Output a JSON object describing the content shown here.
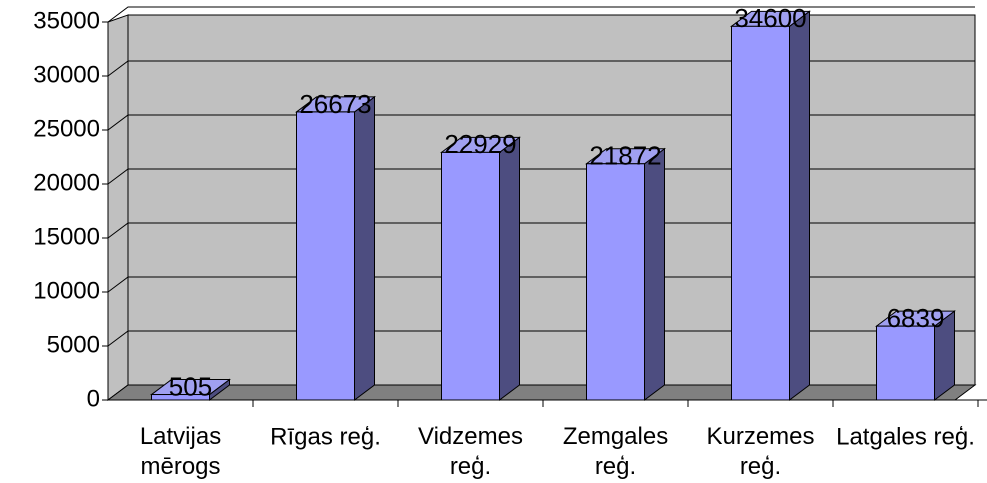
{
  "chart_data": {
    "type": "bar3d",
    "categories": [
      "Latvijas mērogs",
      "Rīgas reģ.",
      "Vidzemes reģ.",
      "Zemgales reģ.",
      "Kurzemes reģ.",
      "Latgales reģ."
    ],
    "values": [
      505,
      26673,
      22929,
      21872,
      34600,
      6839
    ],
    "color": "#9999ff",
    "ylim": [
      0,
      35000
    ],
    "yticks": [
      0,
      5000,
      10000,
      15000,
      20000,
      25000,
      30000,
      35000
    ],
    "grid": true
  }
}
